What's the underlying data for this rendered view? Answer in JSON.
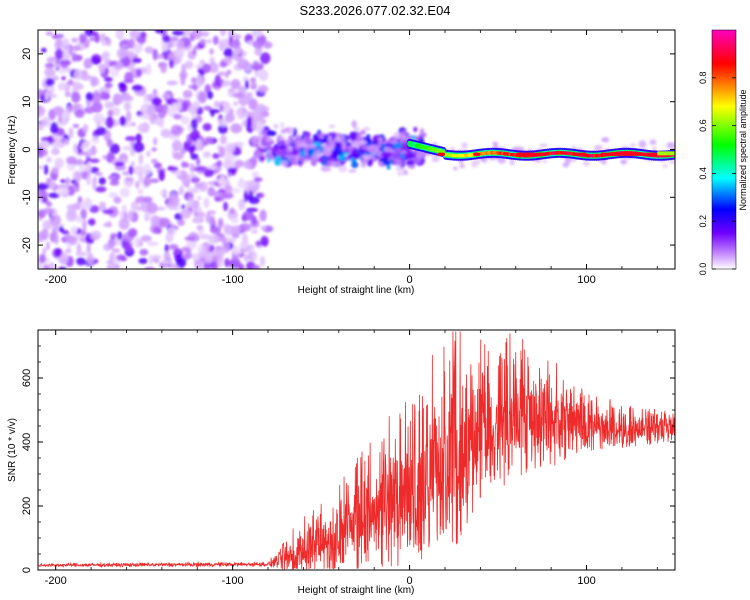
{
  "title": "S233.2026.077.02.32.E04",
  "chart_data": [
    {
      "type": "heatmap",
      "name": "spectrogram",
      "xlabel": "Height of straight line (km)",
      "ylabel": "Frequency (Hz)",
      "xlim": [
        -210,
        150
      ],
      "ylim": [
        -25,
        25
      ],
      "xticks": [
        -200,
        -100,
        0,
        100
      ],
      "yticks": [
        -20,
        -10,
        0,
        10,
        20
      ],
      "colorbar": {
        "label": "Normalized spectral amplitude",
        "range": [
          0,
          1
        ],
        "ticks": [
          0.0,
          0.2,
          0.4,
          0.6,
          0.8
        ],
        "colors": [
          "#ffffff",
          "#c080ff",
          "#7000ff",
          "#0000ff",
          "#00ffff",
          "#00ff00",
          "#ffff00",
          "#ff0000",
          "#ff00c0"
        ]
      },
      "regions": [
        {
          "x_range": [
            -210,
            -80
          ],
          "freq_range": [
            -25,
            25
          ],
          "description": "broadband noise",
          "amplitude": 0.05
        },
        {
          "x_range": [
            -80,
            0
          ],
          "freq_center": 0,
          "spread_hz": [
            -8,
            7
          ],
          "amplitude": 0.2
        },
        {
          "x_range": [
            0,
            150
          ],
          "freq_center": -1,
          "spread_hz": [
            -2,
            2
          ],
          "amplitude": 0.95
        }
      ]
    },
    {
      "type": "line",
      "name": "snr",
      "xlabel": "Height of straight line (km)",
      "ylabel": "SNR (10 * v/v)",
      "xlim": [
        -210,
        150
      ],
      "ylim": [
        0,
        750
      ],
      "xticks": [
        -200,
        -100,
        0,
        100
      ],
      "yticks": [
        0,
        200,
        400,
        600
      ],
      "color": "#ee2a2a",
      "trend": [
        {
          "x": -210,
          "base": 15,
          "noise": 8
        },
        {
          "x": -80,
          "base": 18,
          "noise": 10
        },
        {
          "x": -70,
          "base": 40,
          "noise": 60
        },
        {
          "x": -50,
          "base": 90,
          "noise": 100
        },
        {
          "x": -30,
          "base": 150,
          "noise": 160
        },
        {
          "x": -10,
          "base": 220,
          "noise": 230
        },
        {
          "x": 10,
          "base": 290,
          "noise": 280
        },
        {
          "x": 25,
          "base": 380,
          "noise": 320
        },
        {
          "x": 40,
          "base": 450,
          "noise": 230
        },
        {
          "x": 60,
          "base": 480,
          "noise": 200
        },
        {
          "x": 80,
          "base": 470,
          "noise": 150
        },
        {
          "x": 100,
          "base": 450,
          "noise": 80
        },
        {
          "x": 150,
          "base": 440,
          "noise": 40
        }
      ]
    }
  ]
}
